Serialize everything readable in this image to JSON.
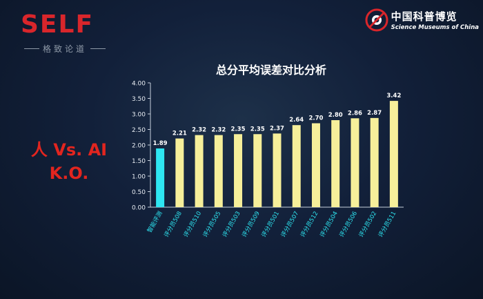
{
  "branding": {
    "left_logo": "SELF",
    "left_tagline": "格致论道",
    "right_logo_cn": "中国科普博览",
    "right_logo_en": "Science Museums of China"
  },
  "headline": {
    "line1": "人 Vs. AI",
    "line2": "K.O."
  },
  "colors": {
    "highlight_bar": "#2ee6f2",
    "bar": "#f6ef9a",
    "headline": "#e2251f",
    "brand_red": "#d9262b"
  },
  "chart_data": {
    "type": "bar",
    "title": "总分平均误差对比分析",
    "categories": [
      "智能评测",
      "评分员508",
      "评分员510",
      "评分员505",
      "评分员503",
      "评分员509",
      "评分员501",
      "评分员507",
      "评分员512",
      "评分员504",
      "评分员506",
      "评分员502",
      "评分员511"
    ],
    "values": [
      1.89,
      2.21,
      2.32,
      2.32,
      2.35,
      2.35,
      2.37,
      2.64,
      2.7,
      2.8,
      2.86,
      2.87,
      3.42
    ],
    "value_labels": [
      "1.89",
      "2.21",
      "2.32",
      "2.32",
      "2.35",
      "2.35",
      "2.37",
      "2.64",
      "2.70",
      "2.80",
      "2.86",
      "2.87",
      "3.42"
    ],
    "y_ticks": [
      "0.00",
      "0.50",
      "1.00",
      "1.50",
      "2.00",
      "2.50",
      "3.00",
      "3.50",
      "4.00"
    ],
    "ylim": [
      0,
      4
    ],
    "grid": false,
    "highlight_index": 0
  }
}
